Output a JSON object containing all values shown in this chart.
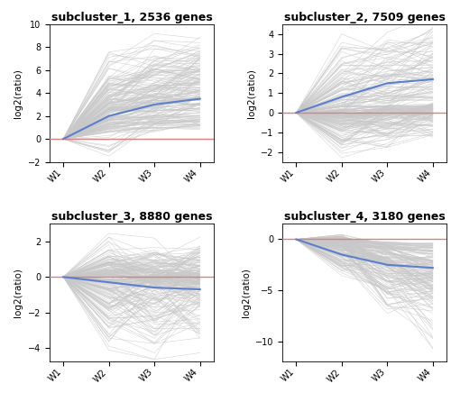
{
  "subclusters": [
    {
      "title": "subcluster_1, 2536 genes",
      "ylim": [
        -2,
        10
      ],
      "yticks": [
        -2,
        0,
        2,
        4,
        6,
        8,
        10
      ],
      "avg": [
        0.0,
        2.0,
        3.0,
        3.5
      ]
    },
    {
      "title": "subcluster_2, 7509 genes",
      "ylim": [
        -2.5,
        4.5
      ],
      "yticks": [
        -2,
        -1,
        0,
        1,
        2,
        3,
        4
      ],
      "avg": [
        0.0,
        0.8,
        1.5,
        1.7
      ]
    },
    {
      "title": "subcluster_3, 8880 genes",
      "ylim": [
        -4.8,
        3.0
      ],
      "yticks": [
        -4,
        -2,
        0,
        2
      ],
      "avg": [
        0.0,
        -0.3,
        -0.6,
        -0.7
      ]
    },
    {
      "title": "subcluster_4, 3180 genes",
      "ylim": [
        -12,
        1.5
      ],
      "yticks": [
        -10,
        -5,
        0
      ],
      "avg": [
        0.0,
        -1.5,
        -2.5,
        -2.8
      ]
    }
  ],
  "x_labels": [
    "W1",
    "W2",
    "W3",
    "W4"
  ],
  "x_positions": [
    0,
    1,
    2,
    3
  ],
  "ylabel": "log2(ratio)",
  "gray_color": "#c8c8c8",
  "blue_color": "#5b7fcc",
  "red_color": "#d98080",
  "background_color": "#ffffff",
  "title_fontsize": 9,
  "axis_fontsize": 7.5,
  "tick_fontsize": 7
}
